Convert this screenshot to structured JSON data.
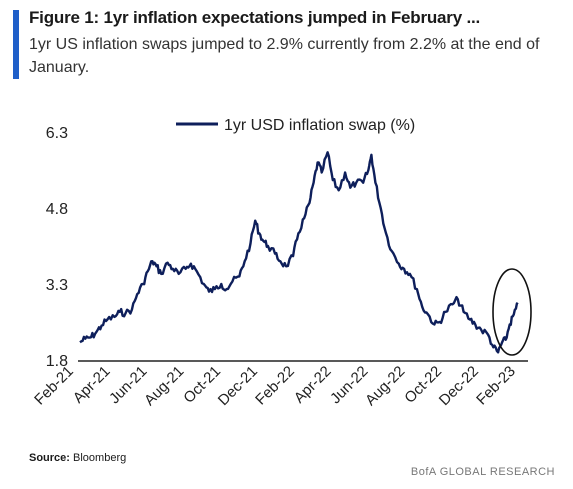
{
  "header": {
    "title": "Figure 1: 1yr inflation expectations jumped in February ...",
    "subtitle": "1yr US inflation swaps jumped to 2.9% currently from 2.2% at the end of January."
  },
  "footer": {
    "source_label": "Source:",
    "source_value": "Bloomberg",
    "brand": "BofA GLOBAL RESEARCH"
  },
  "colors": {
    "accent": "#1f5fc9",
    "line": "#0e1f5b",
    "axis": "#222222"
  },
  "chart_data": {
    "type": "line",
    "title": "",
    "xlabel": "",
    "ylabel": "",
    "ylim": [
      1.8,
      6.3
    ],
    "yticks": [
      "6.3",
      "4.8",
      "3.3",
      "1.8"
    ],
    "xticks": [
      "Feb-21",
      "Apr-21",
      "Jun-21",
      "Aug-21",
      "Oct-21",
      "Dec-21",
      "Feb-22",
      "Apr-22",
      "Jun-22",
      "Aug-22",
      "Oct-22",
      "Dec-22",
      "Feb-23"
    ],
    "xlim": [
      "2021-02-01",
      "2023-02-28"
    ],
    "legend": "top-center",
    "annotation": "circle around latest values (Feb-23)",
    "series": [
      {
        "name": "1yr USD inflation swap (%)",
        "points": [
          [
            "2021-02-01",
            2.15
          ],
          [
            "2021-02-10",
            2.22
          ],
          [
            "2021-02-20",
            2.25
          ],
          [
            "2021-03-01",
            2.35
          ],
          [
            "2021-03-10",
            2.48
          ],
          [
            "2021-03-20",
            2.6
          ],
          [
            "2021-04-01",
            2.65
          ],
          [
            "2021-04-10",
            2.75
          ],
          [
            "2021-04-20",
            2.72
          ],
          [
            "2021-05-01",
            2.8
          ],
          [
            "2021-05-10",
            3.1
          ],
          [
            "2021-05-20",
            3.3
          ],
          [
            "2021-05-28",
            3.55
          ],
          [
            "2021-06-05",
            3.75
          ],
          [
            "2021-06-12",
            3.65
          ],
          [
            "2021-06-20",
            3.5
          ],
          [
            "2021-07-01",
            3.72
          ],
          [
            "2021-07-10",
            3.6
          ],
          [
            "2021-07-20",
            3.5
          ],
          [
            "2021-08-01",
            3.6
          ],
          [
            "2021-08-10",
            3.7
          ],
          [
            "2021-08-20",
            3.55
          ],
          [
            "2021-09-01",
            3.3
          ],
          [
            "2021-09-10",
            3.15
          ],
          [
            "2021-09-20",
            3.2
          ],
          [
            "2021-10-01",
            3.3
          ],
          [
            "2021-10-10",
            3.2
          ],
          [
            "2021-10-20",
            3.35
          ],
          [
            "2021-11-01",
            3.45
          ],
          [
            "2021-11-10",
            3.75
          ],
          [
            "2021-11-20",
            4.1
          ],
          [
            "2021-11-28",
            4.55
          ],
          [
            "2021-12-05",
            4.3
          ],
          [
            "2021-12-12",
            4.15
          ],
          [
            "2021-12-20",
            4.05
          ],
          [
            "2022-01-01",
            3.9
          ],
          [
            "2022-01-10",
            3.75
          ],
          [
            "2022-01-20",
            3.65
          ],
          [
            "2022-02-01",
            3.85
          ],
          [
            "2022-02-10",
            4.3
          ],
          [
            "2022-02-20",
            4.6
          ],
          [
            "2022-03-01",
            4.9
          ],
          [
            "2022-03-08",
            5.3
          ],
          [
            "2022-03-15",
            5.7
          ],
          [
            "2022-03-22",
            5.5
          ],
          [
            "2022-04-01",
            5.9
          ],
          [
            "2022-04-10",
            5.35
          ],
          [
            "2022-04-20",
            5.15
          ],
          [
            "2022-05-01",
            5.5
          ],
          [
            "2022-05-10",
            5.2
          ],
          [
            "2022-05-20",
            5.3
          ],
          [
            "2022-06-01",
            5.3
          ],
          [
            "2022-06-10",
            5.55
          ],
          [
            "2022-06-15",
            5.85
          ],
          [
            "2022-06-22",
            5.3
          ],
          [
            "2022-07-01",
            4.8
          ],
          [
            "2022-07-10",
            4.3
          ],
          [
            "2022-07-20",
            3.95
          ],
          [
            "2022-08-01",
            3.7
          ],
          [
            "2022-08-10",
            3.6
          ],
          [
            "2022-08-20",
            3.5
          ],
          [
            "2022-09-01",
            3.2
          ],
          [
            "2022-09-10",
            2.85
          ],
          [
            "2022-09-20",
            2.7
          ],
          [
            "2022-10-01",
            2.5
          ],
          [
            "2022-10-10",
            2.55
          ],
          [
            "2022-10-20",
            2.75
          ],
          [
            "2022-11-01",
            2.9
          ],
          [
            "2022-11-10",
            3.0
          ],
          [
            "2022-11-20",
            2.75
          ],
          [
            "2022-12-01",
            2.6
          ],
          [
            "2022-12-10",
            2.5
          ],
          [
            "2022-12-20",
            2.4
          ],
          [
            "2023-01-01",
            2.3
          ],
          [
            "2023-01-10",
            2.05
          ],
          [
            "2023-01-18",
            1.95
          ],
          [
            "2023-01-25",
            2.15
          ],
          [
            "2023-01-31",
            2.2
          ],
          [
            "2023-02-07",
            2.5
          ],
          [
            "2023-02-14",
            2.7
          ],
          [
            "2023-02-21",
            2.9
          ]
        ]
      }
    ]
  }
}
